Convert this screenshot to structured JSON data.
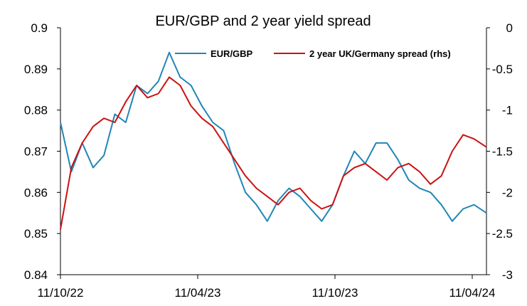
{
  "chart_data": {
    "type": "line",
    "title": "EUR/GBP and 2 year yield spread",
    "x_labels": [
      "11/10/22",
      "11/04/23",
      "11/10/23",
      "11/04/24"
    ],
    "x_range": [
      "2022-10-11",
      "2024-04-11"
    ],
    "y_left": {
      "ticks": [
        "0.84",
        "0.85",
        "0.86",
        "0.87",
        "0.88",
        "0.89",
        "0.9"
      ],
      "range": [
        0.84,
        0.9
      ]
    },
    "y_right": {
      "ticks": [
        "-3",
        "-2.5",
        "-2",
        "-1.5",
        "-1",
        "-0.5",
        "0"
      ],
      "range": [
        -3,
        0
      ]
    },
    "legend": {
      "placement": "top"
    },
    "grid": false,
    "series": [
      {
        "name": "EUR/GBP",
        "axis": "left",
        "color": "#1f86b8",
        "x": [
          "2022-10-11",
          "2022-10-25",
          "2022-11-08",
          "2022-11-22",
          "2022-12-06",
          "2022-12-20",
          "2023-01-03",
          "2023-01-17",
          "2023-01-31",
          "2023-02-14",
          "2023-02-28",
          "2023-03-14",
          "2023-03-28",
          "2023-04-11",
          "2023-04-25",
          "2023-05-09",
          "2023-05-23",
          "2023-06-06",
          "2023-06-20",
          "2023-07-04",
          "2023-07-18",
          "2023-08-01",
          "2023-08-15",
          "2023-08-29",
          "2023-09-12",
          "2023-09-26",
          "2023-10-10",
          "2023-10-24",
          "2023-11-07",
          "2023-11-21",
          "2023-12-05",
          "2023-12-19",
          "2024-01-02",
          "2024-01-16",
          "2024-01-30",
          "2024-02-13",
          "2024-02-27",
          "2024-03-12",
          "2024-03-26",
          "2024-04-11"
        ],
        "values": [
          0.877,
          0.865,
          0.872,
          0.866,
          0.869,
          0.879,
          0.877,
          0.886,
          0.884,
          0.887,
          0.894,
          0.888,
          0.886,
          0.881,
          0.877,
          0.875,
          0.867,
          0.86,
          0.857,
          0.853,
          0.858,
          0.861,
          0.859,
          0.856,
          0.853,
          0.857,
          0.864,
          0.87,
          0.867,
          0.872,
          0.872,
          0.868,
          0.863,
          0.861,
          0.86,
          0.857,
          0.853,
          0.856,
          0.857,
          0.855
        ]
      },
      {
        "name": "2 year UK/Germany spread (rhs)",
        "axis": "right",
        "color": "#cc1111",
        "x": [
          "2022-10-11",
          "2022-10-25",
          "2022-11-08",
          "2022-11-22",
          "2022-12-06",
          "2022-12-20",
          "2023-01-03",
          "2023-01-17",
          "2023-01-31",
          "2023-02-14",
          "2023-02-28",
          "2023-03-14",
          "2023-03-28",
          "2023-04-11",
          "2023-04-25",
          "2023-05-09",
          "2023-05-23",
          "2023-06-06",
          "2023-06-20",
          "2023-07-04",
          "2023-07-18",
          "2023-08-01",
          "2023-08-15",
          "2023-08-29",
          "2023-09-12",
          "2023-09-26",
          "2023-10-10",
          "2023-10-24",
          "2023-11-07",
          "2023-11-21",
          "2023-12-05",
          "2023-12-19",
          "2024-01-02",
          "2024-01-16",
          "2024-01-30",
          "2024-02-13",
          "2024-02-27",
          "2024-03-12",
          "2024-03-26",
          "2024-04-11"
        ],
        "values": [
          -2.45,
          -1.7,
          -1.4,
          -1.2,
          -1.1,
          -1.15,
          -0.9,
          -0.7,
          -0.85,
          -0.8,
          -0.6,
          -0.7,
          -0.95,
          -1.1,
          -1.2,
          -1.4,
          -1.6,
          -1.8,
          -1.95,
          -2.05,
          -2.15,
          -2.0,
          -1.95,
          -2.1,
          -2.2,
          -2.15,
          -1.8,
          -1.7,
          -1.65,
          -1.75,
          -1.85,
          -1.7,
          -1.65,
          -1.75,
          -1.9,
          -1.8,
          -1.5,
          -1.3,
          -1.35,
          -1.45
        ]
      }
    ]
  }
}
